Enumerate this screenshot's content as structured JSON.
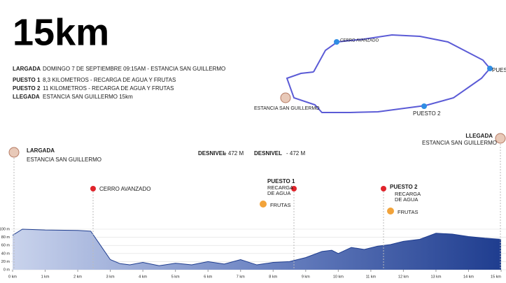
{
  "title": "15km",
  "info": [
    {
      "label": "LARGADA",
      "text": "DOMINGO 7 DE SEPTIEMBRE 09:15AM - ESTANCIA SAN GUILLERMO"
    },
    {
      "label": "PUESTO 1",
      "text": "8,3 KILOMETROS - RECARGA DE AGUA Y FRUTAS"
    },
    {
      "label": "PUESTO 2",
      "text": "11 KILOMETROS - RECARGA DE AGUA Y FRUTAS"
    },
    {
      "label": "LLEGADA",
      "text": "ESTANCIA SAN GUILLERMO 15km"
    }
  ],
  "map": {
    "labels": [
      "CERRO AVANZADO",
      "PUESTO",
      "PUESTO 2",
      "ESTANCIA SAN GUILLERMO"
    ]
  },
  "desnivel": [
    {
      "label": "DESNIVEL",
      "text": "+ 472 M"
    },
    {
      "label": "DESNIVEL",
      "text": "- 472 M"
    }
  ],
  "waypoints": {
    "start": {
      "label": "LARGADA",
      "place": "ESTANCIA SAN GUILLERMO"
    },
    "peak": {
      "label": "CERRO AVANZADO"
    },
    "aid1": {
      "label": "PUESTO 1",
      "lines": [
        "RECARGA",
        "DE AGUA"
      ],
      "fruit": "FRUTAS"
    },
    "aid2": {
      "label": "PUESTO 2",
      "lines": [
        "RECARGA",
        "DE AGUA"
      ],
      "fruit": "FRUTAS"
    },
    "finish": {
      "label": "LLEGADA",
      "place": "ESTANCIA SAN GUILLERMO"
    }
  },
  "chart_data": {
    "type": "area",
    "color": "#1f3d8f",
    "x": [
      0,
      0.3,
      1,
      2,
      2.4,
      2.7,
      3,
      3.3,
      3.6,
      4,
      4.5,
      5,
      5.5,
      6,
      6.5,
      7,
      7.5,
      8,
      8.5,
      9,
      9.5,
      9.8,
      10,
      10.4,
      10.8,
      11.2,
      11.6,
      12,
      12.5,
      13,
      13.5,
      14,
      14.5,
      15
    ],
    "values": [
      85,
      100,
      98,
      97,
      95,
      60,
      25,
      15,
      12,
      18,
      10,
      16,
      12,
      20,
      14,
      25,
      12,
      18,
      20,
      30,
      45,
      48,
      40,
      55,
      50,
      58,
      62,
      70,
      75,
      90,
      88,
      82,
      78,
      75
    ],
    "xlim": [
      0,
      15
    ],
    "ylim": [
      0,
      100
    ],
    "xticks": [
      {
        "value": 0,
        "label": "0 km"
      },
      {
        "value": 1,
        "label": "1 km"
      },
      {
        "value": 2,
        "label": "2 km"
      },
      {
        "value": 3,
        "label": "3 km"
      },
      {
        "value": 4,
        "label": "4 km"
      },
      {
        "value": 5,
        "label": "5 km"
      },
      {
        "value": 6,
        "label": "6 km"
      },
      {
        "value": 7,
        "label": "7 km"
      },
      {
        "value": 8,
        "label": "8 km"
      },
      {
        "value": 9,
        "label": "9 km"
      },
      {
        "value": 10,
        "label": "10 km"
      },
      {
        "value": 11,
        "label": "11 km"
      },
      {
        "value": 12,
        "label": "12 km"
      },
      {
        "value": 13,
        "label": "13 km"
      },
      {
        "value": 14,
        "label": "14 km"
      },
      {
        "value": 15,
        "label": "15 km"
      }
    ],
    "yticks": [
      {
        "value": 0,
        "label": "0 m"
      },
      {
        "value": 20,
        "label": "20 m"
      },
      {
        "value": 40,
        "label": "40 m"
      },
      {
        "value": 60,
        "label": "60 m"
      },
      {
        "value": 80,
        "label": "80 m"
      },
      {
        "value": 100,
        "label": "100 m"
      }
    ]
  }
}
